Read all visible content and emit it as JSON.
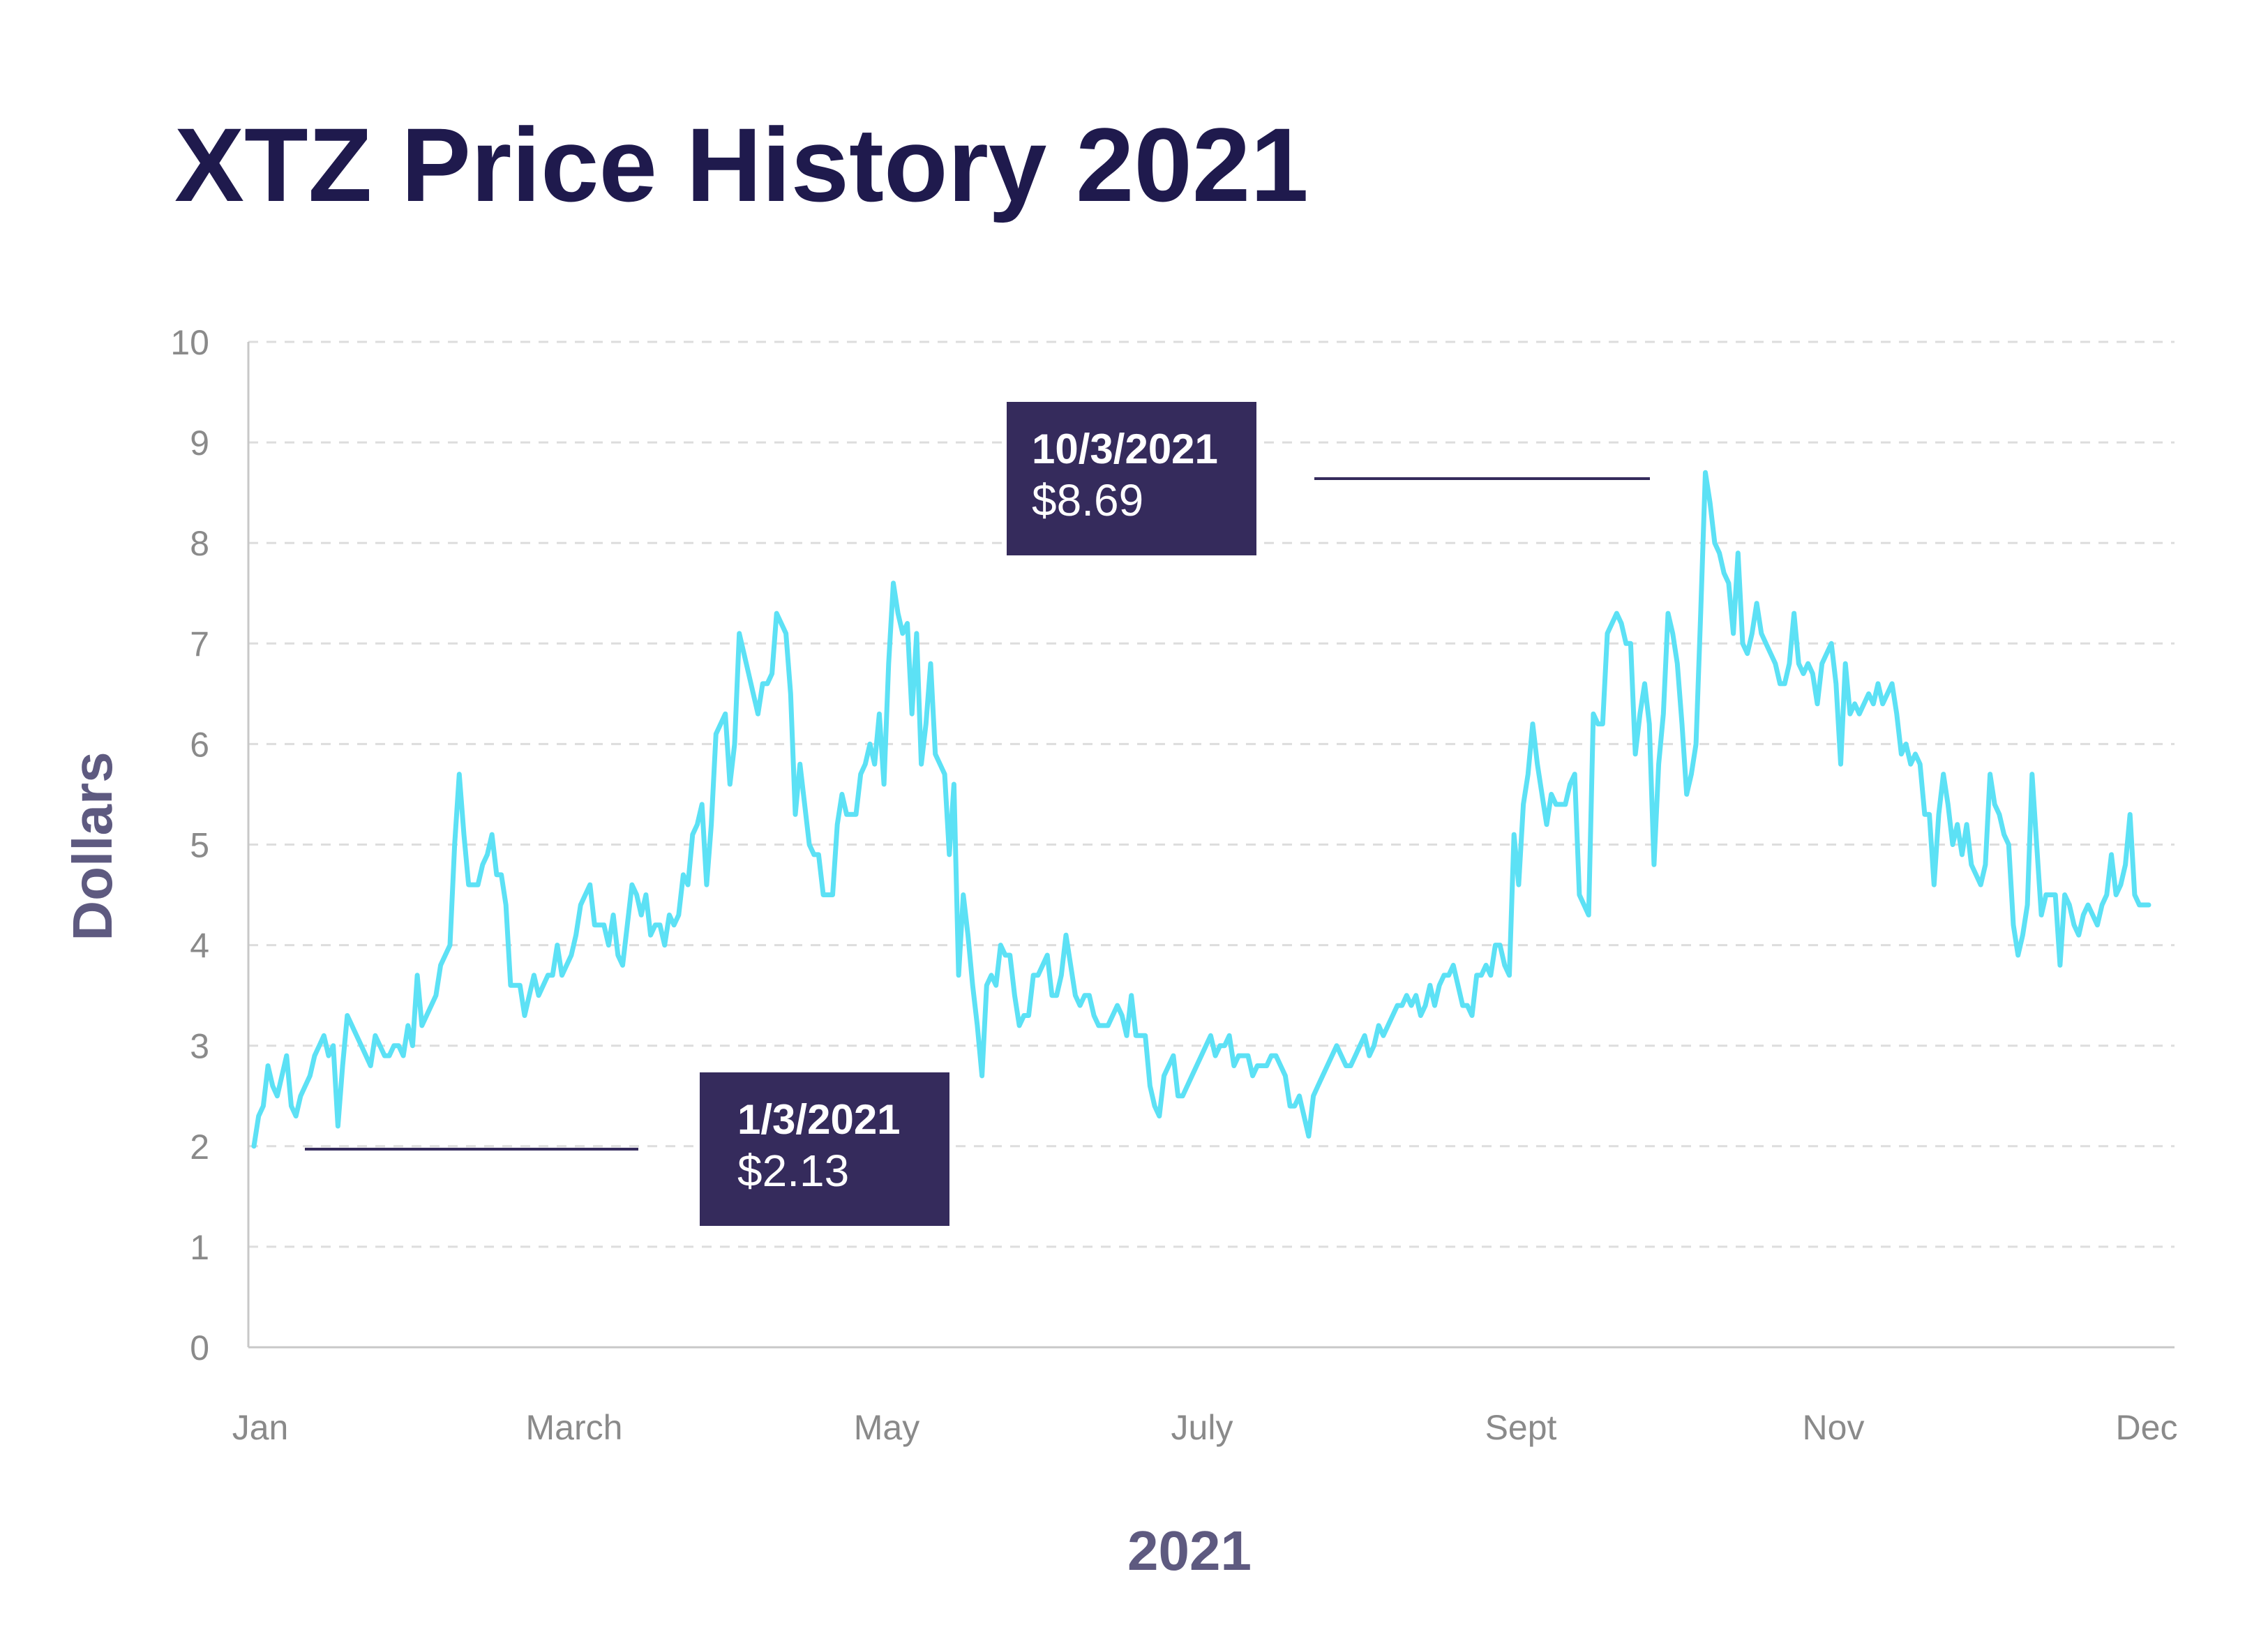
{
  "chart_data": {
    "type": "line",
    "title": "XTZ Price History 2021",
    "xlabel": "2021",
    "ylabel": "Dollars",
    "ylim": [
      0,
      10
    ],
    "yticks": [
      "0",
      "1",
      "2",
      "3",
      "4",
      "5",
      "6",
      "7",
      "8",
      "9",
      "10"
    ],
    "xticks": [
      "Jan",
      "March",
      "May",
      "July",
      "Sept",
      "Nov",
      "Dec"
    ],
    "grid": true,
    "colors": {
      "line": "#5ce1f5",
      "callout": "#352b5c",
      "title": "#1f1a4d",
      "axis_title": "#5e5a80",
      "tick": "#8a8a8a",
      "grid": "#dddddd"
    },
    "series": [
      {
        "values": [
          2.0,
          2.3,
          2.4,
          2.8,
          2.6,
          2.5,
          2.7,
          2.9,
          2.4,
          2.3,
          2.5,
          2.6,
          2.7,
          2.9,
          3.0,
          3.1,
          2.9,
          3.0,
          2.2,
          2.8,
          3.3,
          3.2,
          3.1,
          3.0,
          2.9,
          2.8,
          3.1,
          3.0,
          2.9,
          2.9,
          3.0,
          3.0,
          2.9,
          3.2,
          3.0,
          3.7,
          3.2,
          3.3,
          3.4,
          3.5,
          3.8,
          3.9,
          4.0,
          5.0,
          5.7,
          5.1,
          4.6,
          4.6,
          4.6,
          4.8,
          4.9,
          5.1,
          4.7,
          4.7,
          4.4,
          3.6,
          3.6,
          3.6,
          3.3,
          3.5,
          3.7,
          3.5,
          3.6,
          3.7,
          3.7,
          4.0,
          3.7,
          3.8,
          3.9,
          4.1,
          4.4,
          4.5,
          4.6,
          4.2,
          4.2,
          4.2,
          4.0,
          4.3,
          3.9,
          3.8,
          4.2,
          4.6,
          4.5,
          4.3,
          4.5,
          4.1,
          4.2,
          4.2,
          4.0,
          4.3,
          4.2,
          4.3,
          4.7,
          4.6,
          5.1,
          5.2,
          5.4,
          4.6,
          5.2,
          6.1,
          6.2,
          6.3,
          5.6,
          6.0,
          7.1,
          6.9,
          6.7,
          6.5,
          6.3,
          6.6,
          6.6,
          6.7,
          7.3,
          7.2,
          7.1,
          6.5,
          5.3,
          5.8,
          5.4,
          5.0,
          4.9,
          4.9,
          4.5,
          4.5,
          4.5,
          5.2,
          5.5,
          5.3,
          5.3,
          5.3,
          5.7,
          5.8,
          6.0,
          5.8,
          6.3,
          5.6,
          6.8,
          7.6,
          7.3,
          7.1,
          7.2,
          6.3,
          7.1,
          5.8,
          6.2,
          6.8,
          5.9,
          5.8,
          5.7,
          4.9,
          5.6,
          3.7,
          4.5,
          4.1,
          3.6,
          3.2,
          2.7,
          3.6,
          3.7,
          3.6,
          4.0,
          3.9,
          3.9,
          3.5,
          3.2,
          3.3,
          3.3,
          3.7,
          3.7,
          3.8,
          3.9,
          3.5,
          3.5,
          3.7,
          4.1,
          3.8,
          3.5,
          3.4,
          3.5,
          3.5,
          3.3,
          3.2,
          3.2,
          3.2,
          3.3,
          3.4,
          3.3,
          3.1,
          3.5,
          3.1,
          3.1,
          3.1,
          2.6,
          2.4,
          2.3,
          2.7,
          2.8,
          2.9,
          2.5,
          2.5,
          2.6,
          2.7,
          2.8,
          2.9,
          3.0,
          3.1,
          2.9,
          3.0,
          3.0,
          3.1,
          2.8,
          2.9,
          2.9,
          2.9,
          2.7,
          2.8,
          2.8,
          2.8,
          2.9,
          2.9,
          2.8,
          2.7,
          2.4,
          2.4,
          2.5,
          2.3,
          2.1,
          2.5,
          2.6,
          2.7,
          2.8,
          2.9,
          3.0,
          2.9,
          2.8,
          2.8,
          2.9,
          3.0,
          3.1,
          2.9,
          3.0,
          3.2,
          3.1,
          3.2,
          3.3,
          3.4,
          3.4,
          3.5,
          3.4,
          3.5,
          3.3,
          3.4,
          3.6,
          3.4,
          3.6,
          3.7,
          3.7,
          3.8,
          3.6,
          3.4,
          3.4,
          3.3,
          3.7,
          3.7,
          3.8,
          3.7,
          4.0,
          4.0,
          3.8,
          3.7,
          5.1,
          4.6,
          5.4,
          5.7,
          6.2,
          5.8,
          5.5,
          5.2,
          5.5,
          5.4,
          5.4,
          5.4,
          5.6,
          5.7,
          4.5,
          4.4,
          4.3,
          6.3,
          6.2,
          6.2,
          7.1,
          7.2,
          7.3,
          7.2,
          7.0,
          7.0,
          5.9,
          6.3,
          6.6,
          6.2,
          4.8,
          5.8,
          6.3,
          7.3,
          7.1,
          6.8,
          6.2,
          5.5,
          5.7,
          6.0,
          7.3,
          8.7,
          8.4,
          8.0,
          7.9,
          7.7,
          7.6,
          7.1,
          7.9,
          7.0,
          6.9,
          7.1,
          7.4,
          7.1,
          7.0,
          6.9,
          6.8,
          6.6,
          6.6,
          6.8,
          7.3,
          6.8,
          6.7,
          6.8,
          6.7,
          6.4,
          6.8,
          6.9,
          7.0,
          6.6,
          5.8,
          6.8,
          6.3,
          6.4,
          6.3,
          6.4,
          6.5,
          6.4,
          6.6,
          6.4,
          6.5,
          6.6,
          6.3,
          5.9,
          6.0,
          5.8,
          5.9,
          5.8,
          5.3,
          5.3,
          4.6,
          5.3,
          5.7,
          5.4,
          5.0,
          5.2,
          4.9,
          5.2,
          4.8,
          4.7,
          4.6,
          4.8,
          5.7,
          5.4,
          5.3,
          5.1,
          5.0,
          4.2,
          3.9,
          4.1,
          4.4,
          5.7,
          5.0,
          4.3,
          4.5,
          4.5,
          4.5,
          3.8,
          4.5,
          4.4,
          4.2,
          4.1,
          4.3,
          4.4,
          4.3,
          4.2,
          4.4,
          4.5,
          4.9,
          4.5,
          4.6,
          4.8,
          5.3,
          4.5,
          4.4,
          4.4,
          4.4
        ]
      }
    ],
    "annotations": [
      {
        "date": "1/3/2021",
        "value": 2.13,
        "label_date": "1/3/2021",
        "label_value": "$2.13"
      },
      {
        "date": "10/3/2021",
        "value": 8.69,
        "label_date": "10/3/2021",
        "label_value": "$8.69"
      }
    ]
  }
}
